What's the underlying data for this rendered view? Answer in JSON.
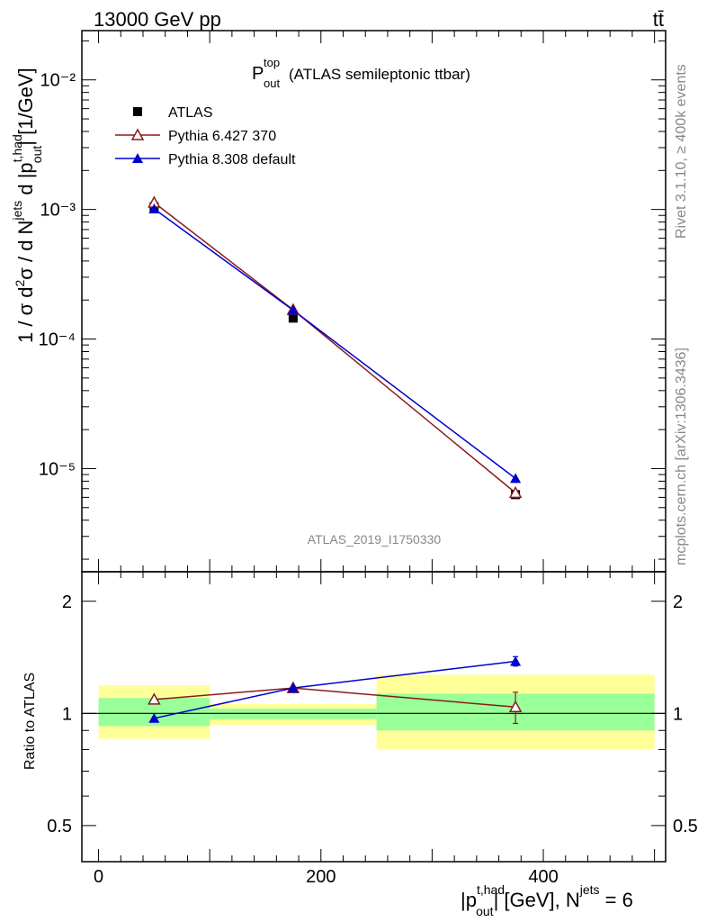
{
  "header": {
    "energy": "13000 GeV pp",
    "process": "tt̄"
  },
  "side_labels": {
    "rivet": "Rivet 3.1.10, ≥ 400k events",
    "mcplots": "mcplots.cern.ch [arXiv:1306.3436]"
  },
  "chart_data": [
    {
      "type": "line",
      "title": "P",
      "title_sup": "top",
      "title_sub": "out",
      "subtitle": "(ATLAS semileptonic ttbar)",
      "watermark": "ATLAS_2019_I1750330",
      "yscale": "log",
      "ylim": [
        1.6e-06,
        0.024
      ],
      "xlim": [
        -15,
        510
      ],
      "ylabel": "1 / σ d²σ / d N^jets d |p_out^t,had| [1/GeV]",
      "y_ticks": [
        "10⁻⁵",
        "10⁻⁴",
        "10⁻³",
        "10⁻²"
      ],
      "legend_position": "top-left",
      "series": [
        {
          "name": "ATLAS",
          "marker": "square",
          "color": "#000000",
          "x": [
            50,
            175,
            375
          ],
          "y": [
            0.00105,
            0.000145,
            6.3e-06
          ]
        },
        {
          "name": "Pythia 6.427 370",
          "marker": "open-triangle",
          "color": "#8b1a1a",
          "x": [
            50,
            175,
            375
          ],
          "y": [
            0.00113,
            0.000168,
            6.5e-06
          ]
        },
        {
          "name": "Pythia 8.308 default",
          "marker": "triangle",
          "color": "#0000cc",
          "x": [
            50,
            175,
            375
          ],
          "y": [
            0.00101,
            0.000167,
            8.4e-06
          ]
        }
      ]
    },
    {
      "type": "line",
      "ylabel": "Ratio to ATLAS",
      "yscale": "log",
      "ylim": [
        0.4,
        2.4
      ],
      "xlim": [
        -15,
        510
      ],
      "xlabel": "|p_out^t,had| [GeV], N^jets = 6",
      "x_ticks": [
        0,
        200,
        400
      ],
      "y_ticks": [
        {
          "value": 0.5,
          "label": "0.5"
        },
        {
          "value": 1,
          "label": "1"
        },
        {
          "value": 2,
          "label": "2"
        }
      ],
      "bands": [
        {
          "x0": 0,
          "x1": 100,
          "yellow": [
            0.855,
            1.19
          ],
          "green": [
            0.925,
            1.1
          ]
        },
        {
          "x0": 100,
          "x1": 250,
          "yellow": [
            0.93,
            1.06
          ],
          "green": [
            0.965,
            1.03
          ]
        },
        {
          "x0": 250,
          "x1": 500,
          "yellow": [
            0.8,
            1.27
          ],
          "green": [
            0.9,
            1.13
          ]
        }
      ],
      "series": [
        {
          "name": "Pythia 6.427 370",
          "x": [
            50,
            175,
            375
          ],
          "y": [
            1.09,
            1.17,
            1.04
          ],
          "err": [
            0,
            0,
            0.1
          ]
        },
        {
          "name": "Pythia 8.308 default",
          "x": [
            50,
            175,
            375
          ],
          "y": [
            0.97,
            1.17,
            1.38
          ],
          "err": [
            0,
            0,
            0.04
          ]
        }
      ]
    }
  ]
}
